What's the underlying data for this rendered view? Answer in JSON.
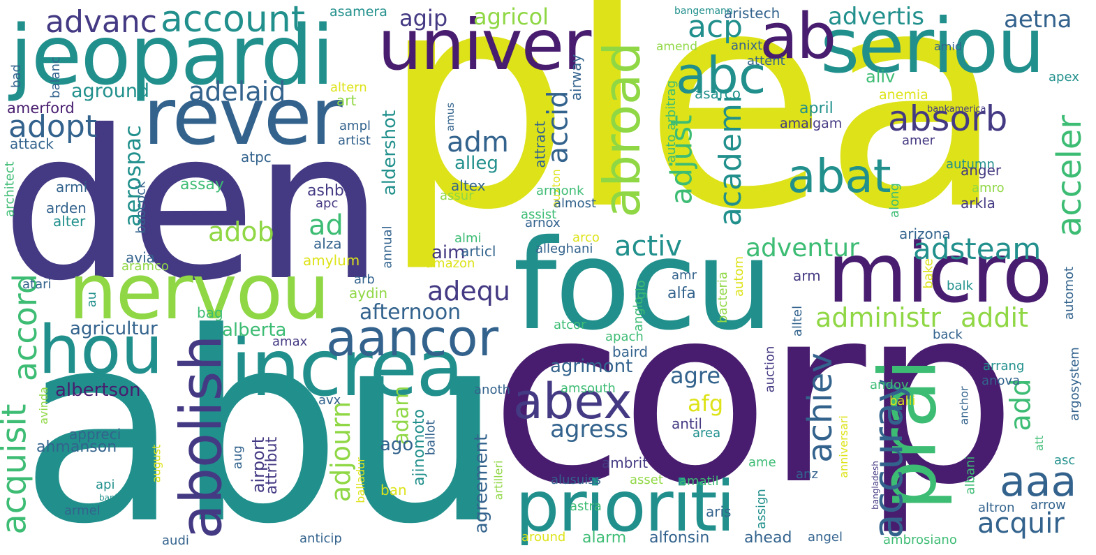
{
  "palette": {
    "yellow": "#dde318",
    "lime": "#8fd744",
    "green": "#3dbc74",
    "teal": "#21908c",
    "blue": "#33638d",
    "indigo": "#443a83",
    "purple": "#481d6f"
  },
  "words": [
    {
      "text": "plea",
      "color": "#dde318"
    },
    {
      "text": "den",
      "color": "#443a83"
    },
    {
      "text": "abu",
      "color": "#21908c"
    },
    {
      "text": "corp",
      "color": "#481d6f"
    },
    {
      "text": "focu",
      "color": "#21908c"
    },
    {
      "text": "jeopardi",
      "color": "#21908c"
    },
    {
      "text": "univer",
      "color": "#481d6f"
    },
    {
      "text": "seriou",
      "color": "#21908c"
    },
    {
      "text": "ab",
      "color": "#481d6f"
    },
    {
      "text": "rever",
      "color": "#33638d"
    },
    {
      "text": "nervou",
      "color": "#8fd744"
    },
    {
      "text": "increa",
      "color": "#21908c"
    },
    {
      "text": "micro",
      "color": "#481d6f"
    },
    {
      "text": "prioriti",
      "color": "#21908c"
    },
    {
      "text": "prai",
      "color": "#3dbc74"
    },
    {
      "text": "hou",
      "color": "#21908c"
    },
    {
      "text": "abex",
      "color": "#443a83"
    },
    {
      "text": "aancor",
      "color": "#33638d"
    },
    {
      "text": "abolish",
      "color": "#443a83"
    },
    {
      "text": "abroad",
      "color": "#8fd744"
    },
    {
      "text": "abc",
      "color": "#21908c"
    },
    {
      "text": "abat",
      "color": "#21908c"
    },
    {
      "text": "aaa",
      "color": "#33638d"
    },
    {
      "text": "accuray",
      "color": "#33638d"
    },
    {
      "text": "achiev",
      "color": "#33638d"
    },
    {
      "text": "acquisit",
      "color": "#3dbc74"
    },
    {
      "text": "accord",
      "color": "#3dbc74"
    },
    {
      "text": "account",
      "color": "#21908c"
    },
    {
      "text": "advanc",
      "color": "#443a83"
    },
    {
      "text": "adelaid",
      "color": "#33638d"
    },
    {
      "text": "adopt",
      "color": "#33638d"
    },
    {
      "text": "aground",
      "color": "#21908c"
    },
    {
      "text": "amerford",
      "color": "#481d6f"
    },
    {
      "text": "attack",
      "color": "#33638d"
    },
    {
      "text": "balanc",
      "color": "#33638d"
    },
    {
      "text": "bad",
      "color": "#33638d"
    },
    {
      "text": "architect",
      "color": "#3dbc74"
    },
    {
      "text": "armi",
      "color": "#33638d"
    },
    {
      "text": "arden",
      "color": "#33638d"
    },
    {
      "text": "alter",
      "color": "#21908c"
    },
    {
      "text": "atpc",
      "color": "#33638d"
    },
    {
      "text": "assay",
      "color": "#3dbc74"
    },
    {
      "text": "babcock",
      "color": "#33638d"
    },
    {
      "text": "aerospac",
      "color": "#21908c"
    },
    {
      "text": "adob",
      "color": "#8fd744"
    },
    {
      "text": "ad",
      "color": "#3dbc74"
    },
    {
      "text": "agip",
      "color": "#443a83"
    },
    {
      "text": "agricol",
      "color": "#8fd744"
    },
    {
      "text": "asamera",
      "color": "#21908c"
    },
    {
      "text": "adm",
      "color": "#33638d"
    },
    {
      "text": "accid",
      "color": "#33638d"
    },
    {
      "text": "alleg",
      "color": "#21908c"
    },
    {
      "text": "altex",
      "color": "#33638d"
    },
    {
      "text": "assur",
      "color": "#8fd744"
    },
    {
      "text": "ashbi",
      "color": "#443a83"
    },
    {
      "text": "apc",
      "color": "#443a83"
    },
    {
      "text": "aldershot",
      "color": "#21908c"
    },
    {
      "text": "ampl",
      "color": "#33638d"
    },
    {
      "text": "artist",
      "color": "#33638d"
    },
    {
      "text": "art",
      "color": "#8fd744"
    },
    {
      "text": "altern",
      "color": "#dde318"
    },
    {
      "text": "amus",
      "color": "#33638d"
    },
    {
      "text": "airway",
      "color": "#33638d"
    },
    {
      "text": "attract",
      "color": "#33638d"
    },
    {
      "text": "auxton",
      "color": "#dde318"
    },
    {
      "text": "auto arbitrag",
      "color": "#3dbc74"
    },
    {
      "text": "adjust",
      "color": "#3dbc74"
    },
    {
      "text": "academi",
      "color": "#21908c"
    },
    {
      "text": "acp",
      "color": "#21908c"
    },
    {
      "text": "advertis",
      "color": "#21908c"
    },
    {
      "text": "aristech",
      "color": "#33638d"
    },
    {
      "text": "bangemann",
      "color": "#21908c"
    },
    {
      "text": "amend",
      "color": "#8fd744"
    },
    {
      "text": "anixt",
      "color": "#33638d"
    },
    {
      "text": "attent",
      "color": "#33638d"
    },
    {
      "text": "asarco",
      "color": "#21908c"
    },
    {
      "text": "aliv",
      "color": "#3dbc74"
    },
    {
      "text": "anemia",
      "color": "#dde318"
    },
    {
      "text": "april",
      "color": "#21908c"
    },
    {
      "text": "amalgam",
      "color": "#443a83"
    },
    {
      "text": "absorb",
      "color": "#443a83"
    },
    {
      "text": "amer",
      "color": "#443a83"
    },
    {
      "text": "autumn",
      "color": "#21908c"
    },
    {
      "text": "anger",
      "color": "#443a83"
    },
    {
      "text": "amro",
      "color": "#8fd744"
    },
    {
      "text": "arkla",
      "color": "#443a83"
    },
    {
      "text": "along",
      "color": "#3dbc74"
    },
    {
      "text": "arizona",
      "color": "#33638d"
    },
    {
      "text": "aetna",
      "color": "#33638d"
    },
    {
      "text": "amid",
      "color": "#33638d"
    },
    {
      "text": "apex",
      "color": "#21908c"
    },
    {
      "text": "bankamerica",
      "color": "#443a83"
    },
    {
      "text": "acceler",
      "color": "#3dbc74"
    },
    {
      "text": "adsteam",
      "color": "#21908c"
    },
    {
      "text": "adventur",
      "color": "#3dbc74"
    },
    {
      "text": "activ",
      "color": "#21908c"
    },
    {
      "text": "adequ",
      "color": "#443a83"
    },
    {
      "text": "afternoon",
      "color": "#33638d"
    },
    {
      "text": "agricultur",
      "color": "#33638d"
    },
    {
      "text": "alberta",
      "color": "#3dbc74"
    },
    {
      "text": "amax",
      "color": "#443a83"
    },
    {
      "text": "bag",
      "color": "#3dbc74"
    },
    {
      "text": "au",
      "color": "#21908c"
    },
    {
      "text": "atari",
      "color": "#33638d"
    },
    {
      "text": "aramco",
      "color": "#8fd744"
    },
    {
      "text": "avia",
      "color": "#33638d"
    },
    {
      "text": "alza",
      "color": "#33638d"
    },
    {
      "text": "amylum",
      "color": "#dde318"
    },
    {
      "text": "aim",
      "color": "#443a83"
    },
    {
      "text": "articl",
      "color": "#33638d"
    },
    {
      "text": "almi",
      "color": "#3dbc74"
    },
    {
      "text": "amazon",
      "color": "#dde318"
    },
    {
      "text": "annual",
      "color": "#33638d"
    },
    {
      "text": "alleghani",
      "color": "#33638d"
    },
    {
      "text": "arco",
      "color": "#dde318"
    },
    {
      "text": "armonk",
      "color": "#3dbc74"
    },
    {
      "text": "almost",
      "color": "#33638d"
    },
    {
      "text": "assist",
      "color": "#3dbc74"
    },
    {
      "text": "arnox",
      "color": "#33638d"
    },
    {
      "text": "administr",
      "color": "#8fd744"
    },
    {
      "text": "addit",
      "color": "#8fd744"
    },
    {
      "text": "arb",
      "color": "#33638d"
    },
    {
      "text": "aydin",
      "color": "#8fd744"
    },
    {
      "text": "amr",
      "color": "#33638d"
    },
    {
      "text": "alfa",
      "color": "#33638d"
    },
    {
      "text": "glo",
      "color": "#3dbc74"
    },
    {
      "text": "anglo",
      "color": "#3dbc74"
    },
    {
      "text": "autom",
      "color": "#dde318"
    },
    {
      "text": "bacteria",
      "color": "#8fd744"
    },
    {
      "text": "arm",
      "color": "#443a83"
    },
    {
      "text": "alltel",
      "color": "#33638d"
    },
    {
      "text": "auction",
      "color": "#443a83"
    },
    {
      "text": "bake",
      "color": "#dde318"
    },
    {
      "text": "balk",
      "color": "#21908c"
    },
    {
      "text": "automot",
      "color": "#33638d"
    },
    {
      "text": "back",
      "color": "#33638d"
    },
    {
      "text": "argosystem",
      "color": "#33638d"
    },
    {
      "text": "apach",
      "color": "#3dbc74"
    },
    {
      "text": "baird",
      "color": "#33638d"
    },
    {
      "text": "atcor",
      "color": "#3dbc74"
    },
    {
      "text": "agrimont",
      "color": "#33638d"
    },
    {
      "text": "agre",
      "color": "#33638d"
    },
    {
      "text": "afg",
      "color": "#dde318"
    },
    {
      "text": "agress",
      "color": "#33638d"
    },
    {
      "text": "amsouth",
      "color": "#3dbc74"
    },
    {
      "text": "adam",
      "color": "#8fd744"
    },
    {
      "text": "adjourn",
      "color": "#8fd744"
    },
    {
      "text": "ago",
      "color": "#33638d"
    },
    {
      "text": "agreement",
      "color": "#33638d"
    },
    {
      "text": "ajinomoto",
      "color": "#21908c"
    },
    {
      "text": "anoth",
      "color": "#33638d"
    },
    {
      "text": "ballot",
      "color": "#33638d"
    },
    {
      "text": "balladur",
      "color": "#dde318"
    },
    {
      "text": "avx",
      "color": "#33638d"
    },
    {
      "text": "albertson",
      "color": "#481d6f"
    },
    {
      "text": "avinda",
      "color": "#8fd744"
    },
    {
      "text": "ahmanson",
      "color": "#33638d"
    },
    {
      "text": "appreci",
      "color": "#33638d"
    },
    {
      "text": "api",
      "color": "#21908c"
    },
    {
      "text": "bank",
      "color": "#21908c"
    },
    {
      "text": "armel",
      "color": "#33638d"
    },
    {
      "text": "august",
      "color": "#dde318"
    },
    {
      "text": "aug",
      "color": "#33638d"
    },
    {
      "text": "airport",
      "color": "#443a83"
    },
    {
      "text": "attribut",
      "color": "#443a83"
    },
    {
      "text": "audi",
      "color": "#33638d"
    },
    {
      "text": "anticip",
      "color": "#33638d"
    },
    {
      "text": "ban",
      "color": "#dde318"
    },
    {
      "text": "artilleri",
      "color": "#8fd744"
    },
    {
      "text": "around",
      "color": "#dde318"
    },
    {
      "text": "alarm",
      "color": "#3dbc74"
    },
    {
      "text": "alfonsin",
      "color": "#33638d"
    },
    {
      "text": "ahead",
      "color": "#33638d"
    },
    {
      "text": "angel",
      "color": "#33638d"
    },
    {
      "text": "astra",
      "color": "#3dbc74"
    },
    {
      "text": "alusuiss",
      "color": "#33638d"
    },
    {
      "text": "asset",
      "color": "#8fd744"
    },
    {
      "text": "amatil",
      "color": "#3dbc74"
    },
    {
      "text": "ambrit",
      "color": "#443a83"
    },
    {
      "text": "antil",
      "color": "#443a83"
    },
    {
      "text": "area",
      "color": "#21908c"
    },
    {
      "text": "add",
      "color": "#3dbc74"
    },
    {
      "text": "aris",
      "color": "#33638d"
    },
    {
      "text": "assign",
      "color": "#21908c"
    },
    {
      "text": "ame",
      "color": "#3dbc74"
    },
    {
      "text": "anz",
      "color": "#33638d"
    },
    {
      "text": "albani",
      "color": "#3dbc74"
    },
    {
      "text": "anchor",
      "color": "#33638d"
    },
    {
      "text": "bangladesh",
      "color": "#443a83"
    },
    {
      "text": "anniversari",
      "color": "#dde318"
    },
    {
      "text": "andov",
      "color": "#3dbc74"
    },
    {
      "text": "balli",
      "color": "#dde318"
    },
    {
      "text": "arrang",
      "color": "#21908c"
    },
    {
      "text": "anova",
      "color": "#33638d"
    },
    {
      "text": "att",
      "color": "#3dbc74"
    },
    {
      "text": "asc",
      "color": "#21908c"
    },
    {
      "text": "altron",
      "color": "#33638d"
    },
    {
      "text": "arrow",
      "color": "#33638d"
    },
    {
      "text": "acquir",
      "color": "#33638d"
    },
    {
      "text": "ambrosiano",
      "color": "#3dbc74"
    }
  ]
}
